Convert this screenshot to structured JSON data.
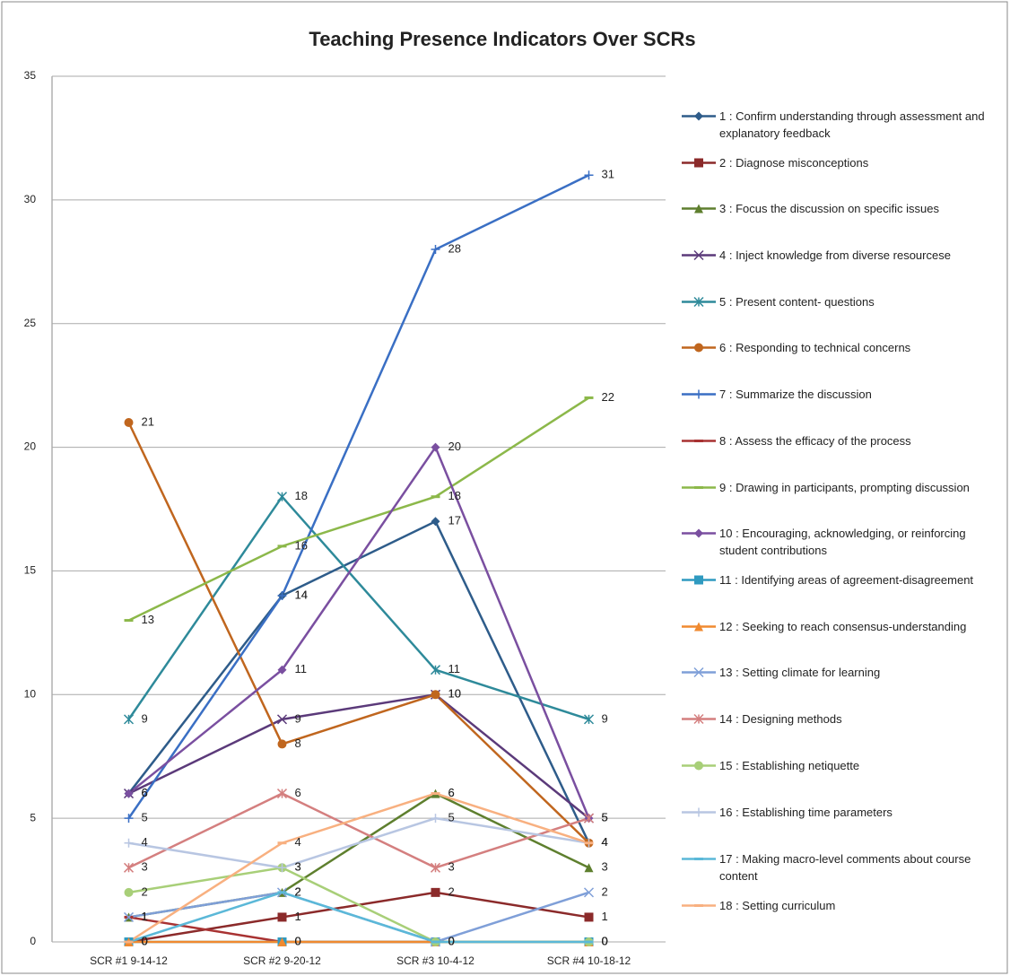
{
  "chart_data": {
    "type": "line",
    "title": "Teaching Presence Indicators Over SCRs",
    "categories": [
      "SCR #1 9-14-12",
      "SCR #2 9-20-12",
      "SCR #3 10-4-12",
      "SCR #4 10-18-12"
    ],
    "ylim": [
      0,
      35
    ],
    "yticks": [
      0,
      5,
      10,
      15,
      20,
      25,
      30,
      35
    ],
    "grid": true,
    "legend": "right",
    "series": [
      {
        "name": "1 : Confirm understanding through assessment and explanatory feedback",
        "color": "#2e5c8a",
        "marker": "diamond",
        "values": [
          6,
          14,
          17,
          4
        ]
      },
      {
        "name": "2 : Diagnose misconceptions",
        "color": "#8b2a2a",
        "marker": "square",
        "values": [
          0,
          1,
          2,
          1
        ]
      },
      {
        "name": "3 : Focus the discussion on specific issues",
        "color": "#5e7f2e",
        "marker": "triangle",
        "values": [
          1,
          2,
          6,
          3
        ]
      },
      {
        "name": "4 : Inject knowledge from diverse resourcese",
        "color": "#5b3a7a",
        "marker": "x",
        "values": [
          6,
          9,
          10,
          5
        ]
      },
      {
        "name": "5 : Present content- questions",
        "color": "#2e8a9a",
        "marker": "asterisk",
        "values": [
          9,
          18,
          11,
          9
        ]
      },
      {
        "name": "6 : Responding to technical concerns",
        "color": "#c0661e",
        "marker": "circle",
        "values": [
          21,
          8,
          10,
          4
        ]
      },
      {
        "name": "7 : Summarize the discussion",
        "color": "#3a6fc4",
        "marker": "plus",
        "values": [
          5,
          14,
          28,
          31
        ]
      },
      {
        "name": "8 : Assess the efficacy of the process",
        "color": "#a83232",
        "marker": "dash",
        "values": [
          1,
          0,
          0,
          0
        ]
      },
      {
        "name": "9 : Drawing in participants, prompting discussion",
        "color": "#8cb84a",
        "marker": "dash",
        "values": [
          13,
          16,
          18,
          22
        ]
      },
      {
        "name": "10 : Encouraging, acknowledging, or reinforcing student contributions",
        "color": "#7a4fa0",
        "marker": "diamond",
        "values": [
          6,
          11,
          20,
          5
        ]
      },
      {
        "name": "11 : Identifying areas of agreement-disagreement",
        "color": "#2f9ac0",
        "marker": "square",
        "values": [
          0,
          0,
          0,
          0
        ]
      },
      {
        "name": "12 : Seeking to reach consensus-understanding",
        "color": "#f08a30",
        "marker": "triangle",
        "values": [
          0,
          0,
          0,
          0
        ]
      },
      {
        "name": "13 : Setting climate for learning",
        "color": "#7f9fd8",
        "marker": "x",
        "values": [
          1,
          2,
          0,
          2
        ]
      },
      {
        "name": "14 : Designing methods",
        "color": "#d47f7f",
        "marker": "asterisk",
        "values": [
          3,
          6,
          3,
          5
        ]
      },
      {
        "name": "15 : Establishing netiquette",
        "color": "#a8cf78",
        "marker": "circle",
        "values": [
          2,
          3,
          0,
          0
        ]
      },
      {
        "name": "16 : Establishing time parameters",
        "color": "#b8c6e2",
        "marker": "plus",
        "values": [
          4,
          3,
          5,
          4
        ]
      },
      {
        "name": "17 : Making macro-level comments about course content",
        "color": "#5bb8d8",
        "marker": "dash",
        "values": [
          0,
          2,
          0,
          0
        ]
      },
      {
        "name": "18 : Setting curriculum",
        "color": "#f8b080",
        "marker": "dash",
        "values": [
          0,
          4,
          6,
          4
        ]
      }
    ]
  }
}
